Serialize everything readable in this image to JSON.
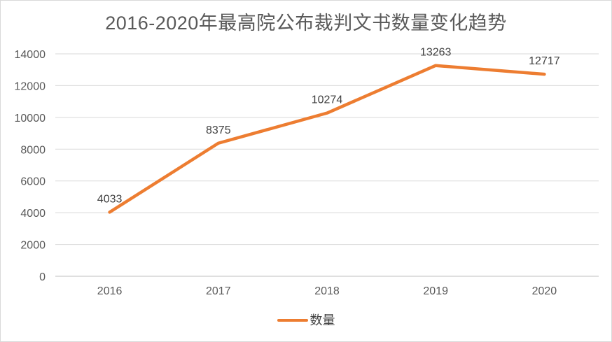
{
  "chart_data": {
    "type": "line",
    "title": "2016-2020年最高院公布裁判文书数量变化趋势",
    "categories": [
      "2016",
      "2017",
      "2018",
      "2019",
      "2020"
    ],
    "series": [
      {
        "name": "数量",
        "values": [
          4033,
          8375,
          10274,
          13263,
          12717
        ],
        "color": "#ED7D31"
      }
    ],
    "data_labels": [
      "4033",
      "8375",
      "10274",
      "13263",
      "12717"
    ],
    "xlabel": "",
    "ylabel": "",
    "ylim": [
      0,
      14000
    ],
    "yticks": [
      0,
      2000,
      4000,
      6000,
      8000,
      10000,
      12000,
      14000
    ],
    "grid": true,
    "legend_position": "bottom"
  },
  "styles": {
    "line_color": "#ED7D31",
    "grid_color": "#d9d9d9",
    "axis_line_color": "#bfbfbf",
    "title_color": "#595959",
    "tick_label_color": "#595959",
    "data_label_color": "#404040",
    "background": "#ffffff",
    "border_color": "#d9d9d9"
  }
}
